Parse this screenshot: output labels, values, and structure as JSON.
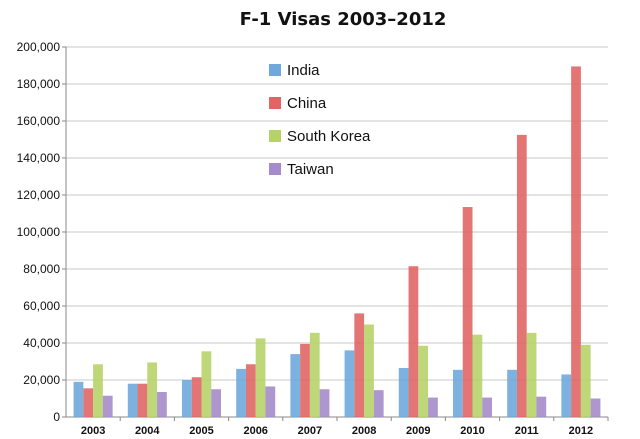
{
  "chart_data": {
    "type": "bar",
    "title": "F-1 Visas 2003–2012",
    "xlabel": "",
    "ylabel": "",
    "categories": [
      "2003",
      "2004",
      "2005",
      "2006",
      "2007",
      "2008",
      "2009",
      "2010",
      "2011",
      "2012"
    ],
    "series": [
      {
        "name": "India",
        "color": "#6fa8dc",
        "values": [
          19000,
          18000,
          20000,
          26000,
          34000,
          36000,
          26500,
          25500,
          25500,
          23000
        ]
      },
      {
        "name": "China",
        "color": "#e06666",
        "values": [
          15500,
          18000,
          21500,
          28500,
          39500,
          56000,
          81500,
          113500,
          152500,
          189500
        ]
      },
      {
        "name": "South Korea",
        "color": "#b6d36a",
        "values": [
          28500,
          29500,
          35500,
          42500,
          45500,
          50000,
          38500,
          44500,
          45500,
          39000
        ]
      },
      {
        "name": "Taiwan",
        "color": "#a58bc9",
        "values": [
          11500,
          13500,
          15000,
          16500,
          15000,
          14500,
          10500,
          10500,
          11000,
          10000
        ]
      }
    ],
    "ylim": [
      0,
      200000
    ],
    "yticks": [
      "0",
      "20,000",
      "40,000",
      "60,000",
      "80,000",
      "100,000",
      "120,000",
      "140,000",
      "160,000",
      "180,000",
      "200,000"
    ],
    "grid": true,
    "legend": "top-center"
  }
}
